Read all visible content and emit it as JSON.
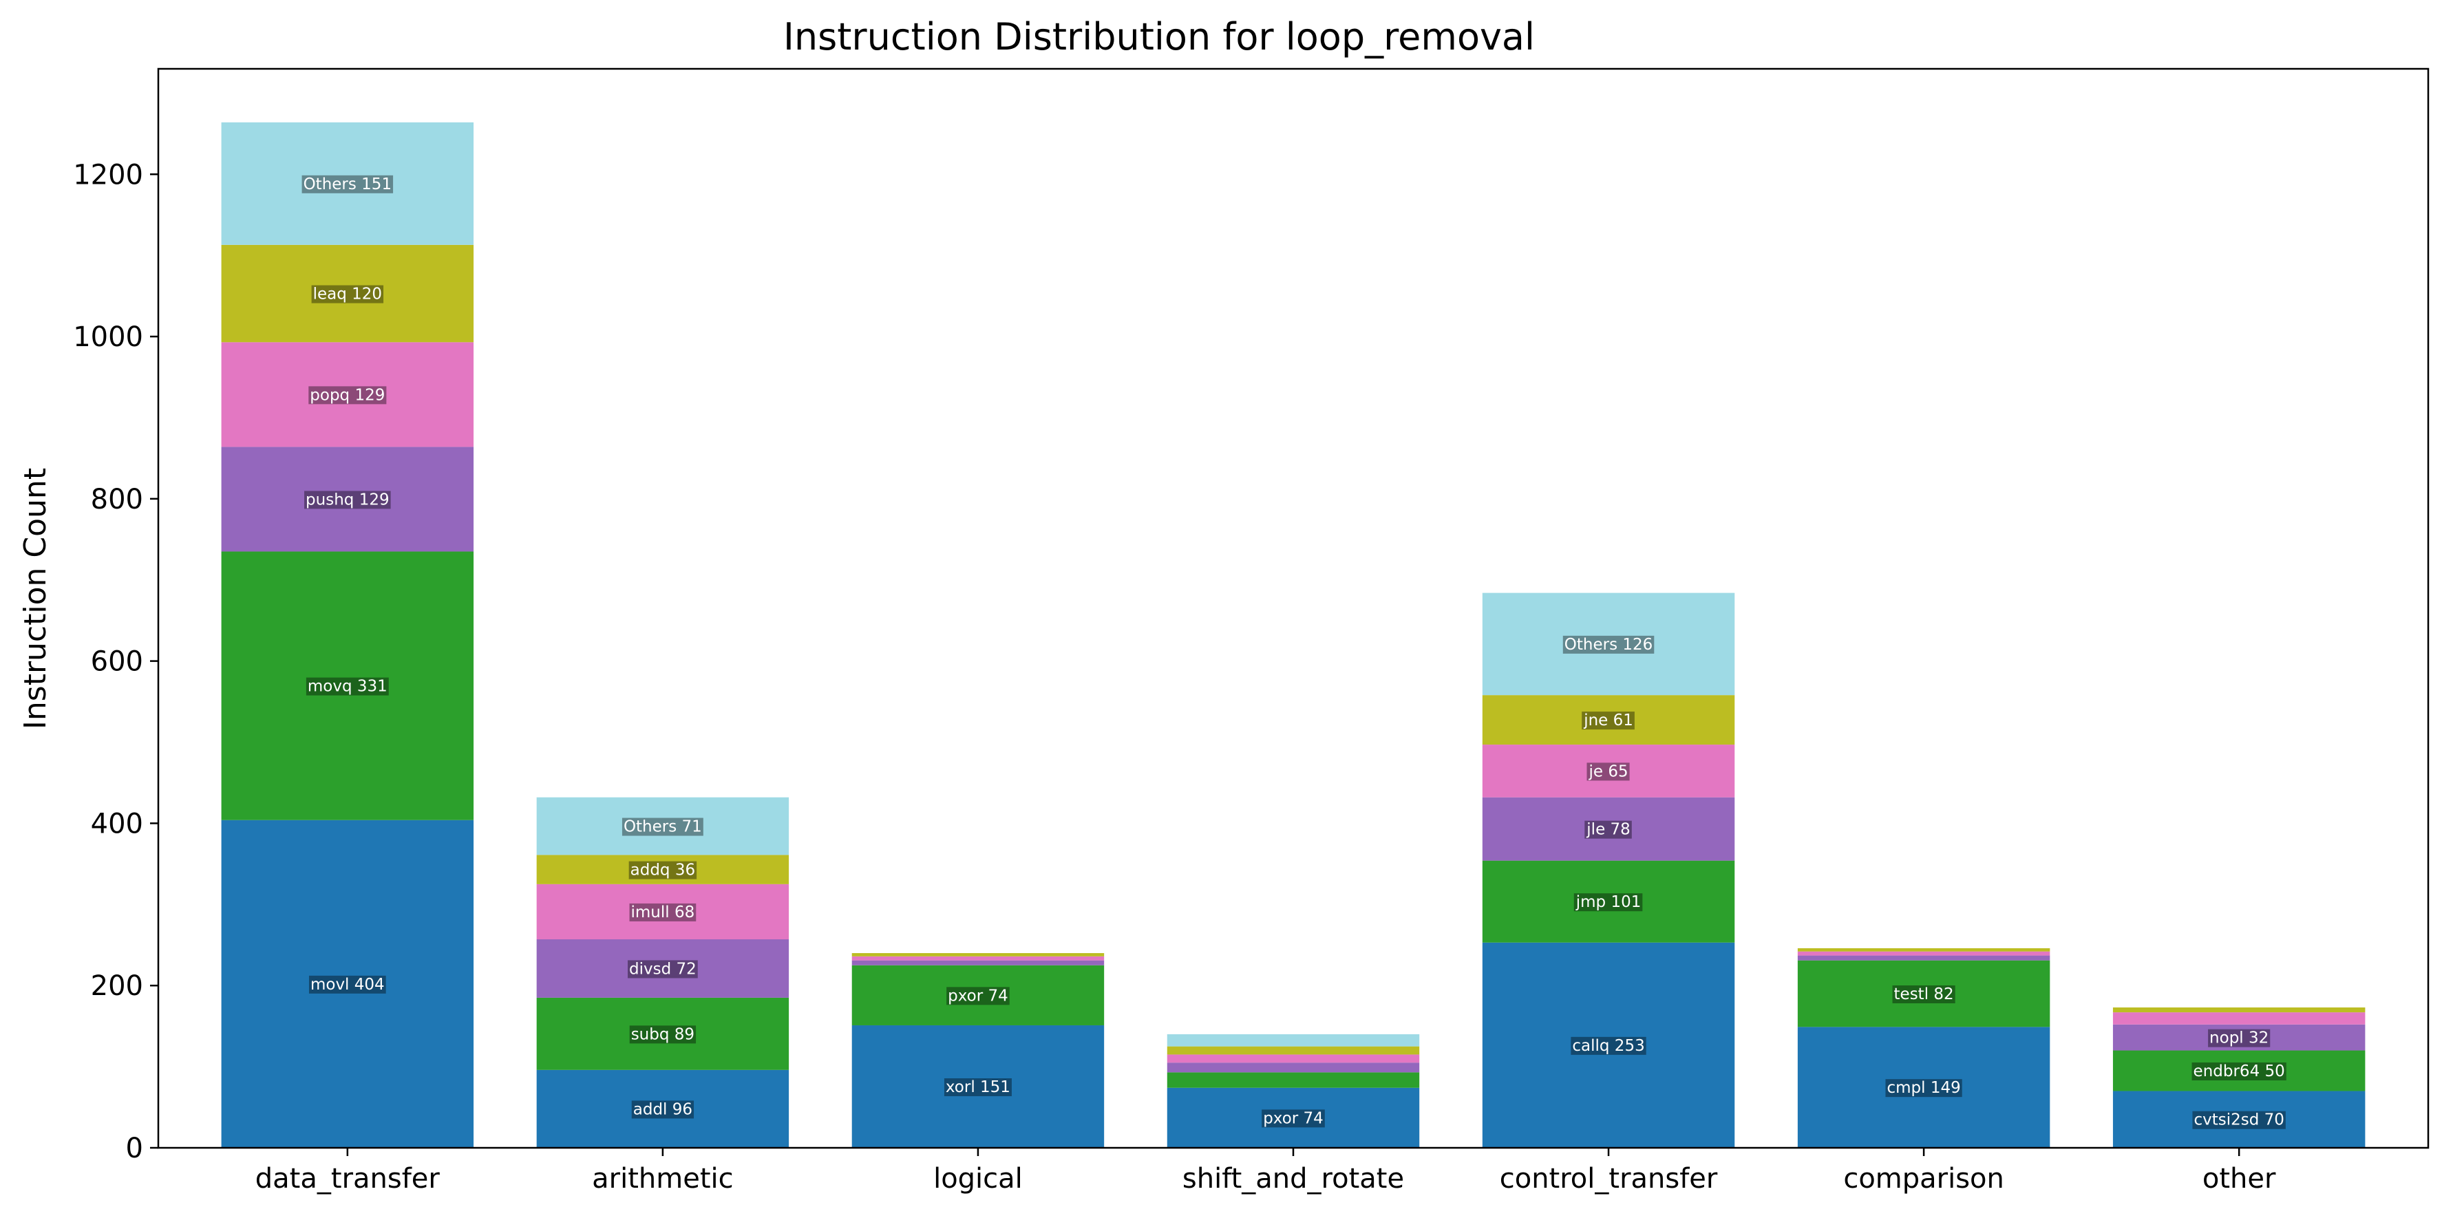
{
  "chart_data": {
    "type": "bar",
    "stacked": true,
    "title": "Instruction Distribution for loop_removal",
    "xlabel": "",
    "ylabel": "Instruction Count",
    "ylim": [
      0,
      1330
    ],
    "yticks": [
      0,
      200,
      400,
      600,
      800,
      1000,
      1200
    ],
    "grid": false,
    "legend": "none",
    "categories": [
      "data_transfer",
      "arithmetic",
      "logical",
      "shift_and_rotate",
      "control_transfer",
      "comparison",
      "other"
    ],
    "layer_colors": [
      "#1f77b4",
      "#2ca02c",
      "#9467bd",
      "#e377c2",
      "#bcbd22",
      "#9edae5"
    ],
    "stacks": [
      {
        "category": "data_transfer",
        "segments": [
          {
            "label": "movl 404",
            "value": 404
          },
          {
            "label": "movq 331",
            "value": 331
          },
          {
            "label": "pushq 129",
            "value": 129
          },
          {
            "label": "popq 129",
            "value": 129
          },
          {
            "label": "leaq 120",
            "value": 120
          },
          {
            "label": "Others 151",
            "value": 151
          }
        ]
      },
      {
        "category": "arithmetic",
        "segments": [
          {
            "label": "addl 96",
            "value": 96
          },
          {
            "label": "subq 89",
            "value": 89
          },
          {
            "label": "divsd 72",
            "value": 72
          },
          {
            "label": "imull 68",
            "value": 68
          },
          {
            "label": "addq 36",
            "value": 36
          },
          {
            "label": "Others 71",
            "value": 71
          }
        ]
      },
      {
        "category": "logical",
        "segments": [
          {
            "label": "xorl 151",
            "value": 151
          },
          {
            "label": "pxor 74",
            "value": 74
          },
          {
            "label": "",
            "value": 6
          },
          {
            "label": "",
            "value": 5
          },
          {
            "label": "",
            "value": 4
          },
          {
            "label": "",
            "value": 0
          }
        ]
      },
      {
        "category": "shift_and_rotate",
        "segments": [
          {
            "label": "pxor 74",
            "value": 74
          },
          {
            "label": "",
            "value": 19
          },
          {
            "label": "",
            "value": 12
          },
          {
            "label": "",
            "value": 10
          },
          {
            "label": "",
            "value": 10
          },
          {
            "label": "",
            "value": 15
          }
        ]
      },
      {
        "category": "control_transfer",
        "segments": [
          {
            "label": "callq 253",
            "value": 253
          },
          {
            "label": "jmp 101",
            "value": 101
          },
          {
            "label": "jle 78",
            "value": 78
          },
          {
            "label": "je 65",
            "value": 65
          },
          {
            "label": "jne 61",
            "value": 61
          },
          {
            "label": "Others 126",
            "value": 126
          }
        ]
      },
      {
        "category": "comparison",
        "segments": [
          {
            "label": "cmpl 149",
            "value": 149
          },
          {
            "label": "testl 82",
            "value": 82
          },
          {
            "label": "",
            "value": 6
          },
          {
            "label": "",
            "value": 5
          },
          {
            "label": "",
            "value": 4
          },
          {
            "label": "",
            "value": 0
          }
        ]
      },
      {
        "category": "other",
        "segments": [
          {
            "label": "cvtsi2sd 70",
            "value": 70
          },
          {
            "label": "endbr64 50",
            "value": 50
          },
          {
            "label": "nopl 32",
            "value": 32
          },
          {
            "label": "",
            "value": 15
          },
          {
            "label": "",
            "value": 6
          },
          {
            "label": "",
            "value": 0
          }
        ]
      }
    ]
  }
}
